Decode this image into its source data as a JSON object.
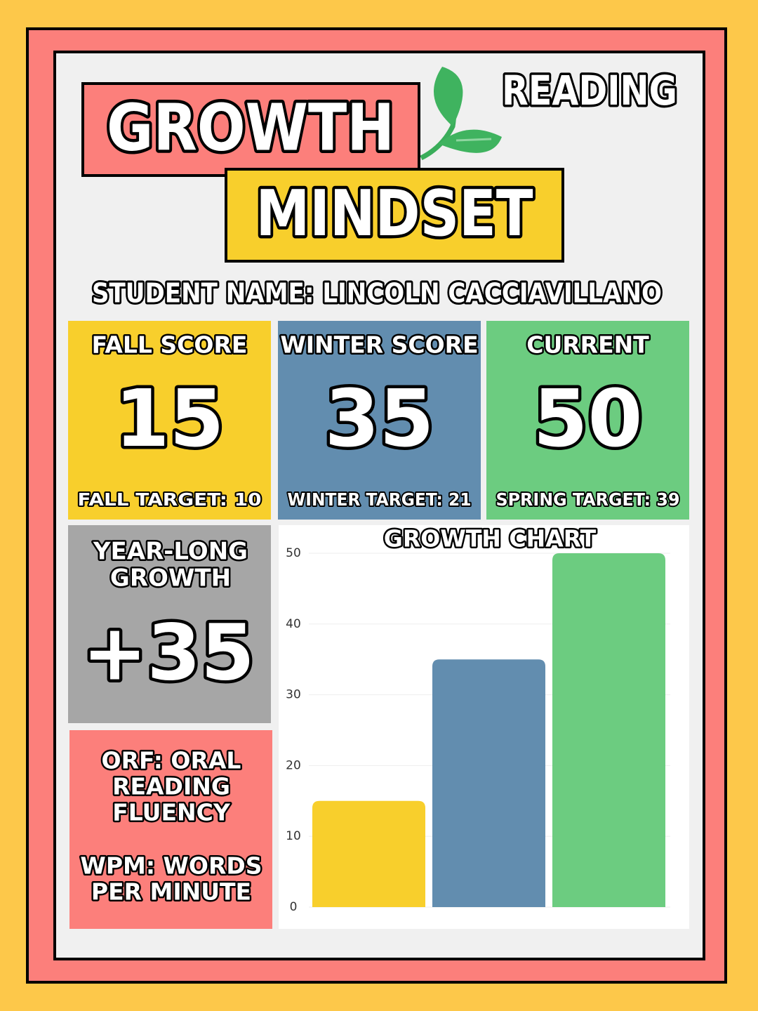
{
  "header": {
    "title_line1": "GROWTH",
    "title_line2": "MINDSET",
    "subject": "READING",
    "student": "STUDENT NAME: LINCOLN CACCIAVILLANO"
  },
  "scores": [
    {
      "label": "FALL SCORE",
      "value": 15,
      "target": "FALL TARGET: 10",
      "color": "#f8cf2c"
    },
    {
      "label": "WINTER SCORE",
      "value": 35,
      "target": "WINTER TARGET: 21",
      "color": "#628daf"
    },
    {
      "label": "CURRENT",
      "value": 50,
      "target": "SPRING TARGET: 39",
      "color": "#6ccc80"
    }
  ],
  "growth": {
    "lines": [
      "YEAR-LONG",
      "GROWTH"
    ],
    "value": "+35"
  },
  "key": {
    "orf": [
      "ORF: ORAL",
      "READING",
      "FLUENCY"
    ],
    "wpm": [
      "WPM: WORDS",
      "PER MINUTE"
    ]
  },
  "chart_data": {
    "type": "bar",
    "title": "GROWTH CHART",
    "categories": [
      null,
      null,
      null
    ],
    "values": [
      15,
      35,
      50
    ],
    "colors": [
      "#f8cf2c",
      "#628daf",
      "#6ccc80"
    ],
    "ylim": [
      0,
      50
    ],
    "yticks": [
      0,
      10,
      20,
      30,
      40,
      50
    ],
    "grid": true
  }
}
